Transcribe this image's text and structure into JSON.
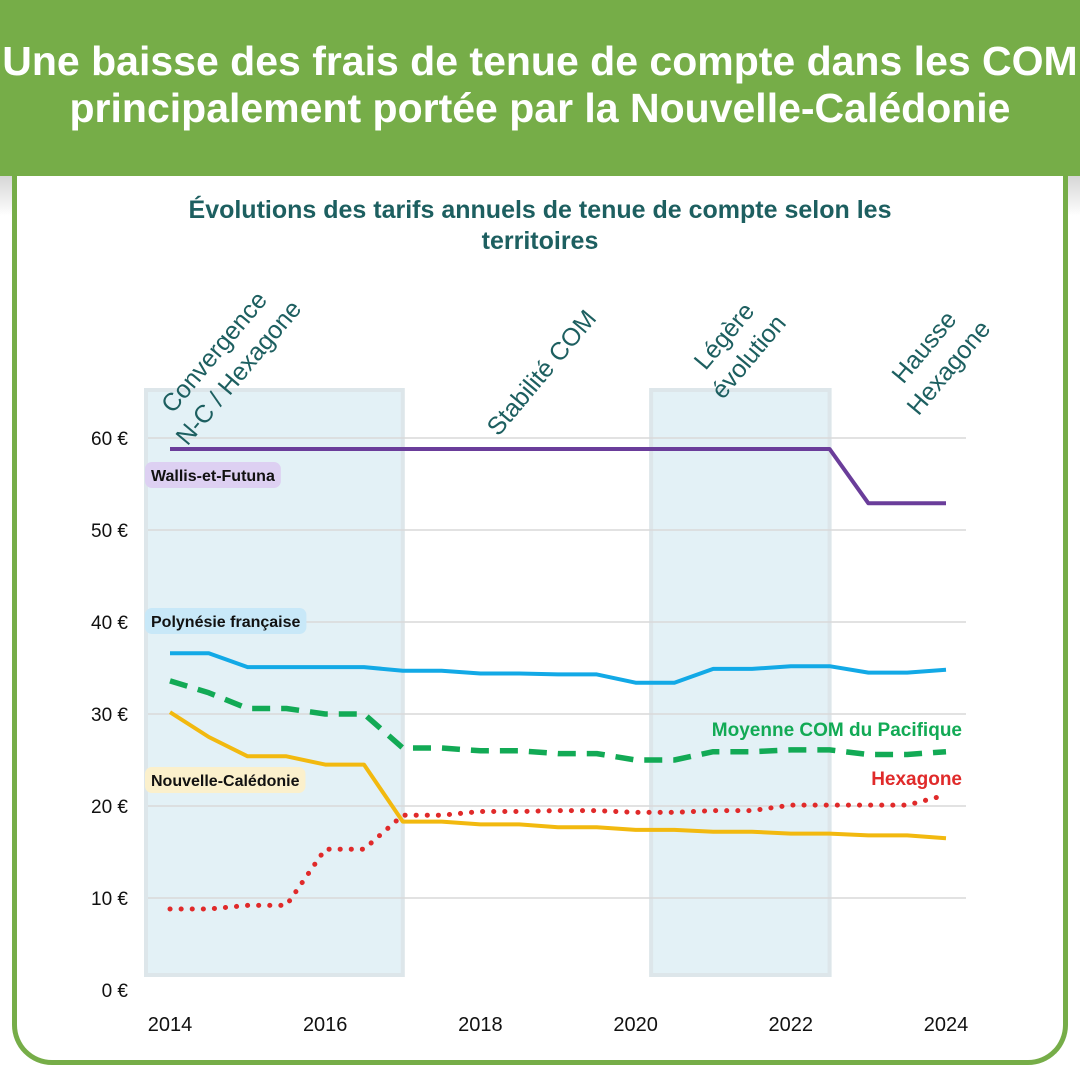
{
  "banner": {
    "title": "Une baisse des frais de tenue de compte dans les COM principalement portée par la Nouvelle-Calédonie"
  },
  "colors": {
    "banner": "#76ad48",
    "title_text": "#1d5f60",
    "period_band": "#e3f1f6"
  },
  "chart_data": {
    "type": "line",
    "title": "Évolutions des tarifs annuels de tenue de compte selon les territoires",
    "xlabel": "",
    "ylabel": "",
    "xlim": [
      2014,
      2024
    ],
    "ylim": [
      0,
      65
    ],
    "grid": true,
    "x_ticks": [
      2014,
      2016,
      2018,
      2020,
      2022,
      2024
    ],
    "y_ticks": [
      0,
      10,
      20,
      30,
      40,
      50,
      60
    ],
    "y_tick_labels": [
      "0 €",
      "10 €",
      "20 €",
      "30 €",
      "40 €",
      "50 €",
      "60 €"
    ],
    "periods": [
      {
        "label_lines": [
          "Convergence",
          "N-C / Hexagone"
        ],
        "start": 2014,
        "end": 2017,
        "shaded": true
      },
      {
        "label_lines": [
          "Stabilité COM"
        ],
        "start": 2017,
        "end": 2020.2,
        "shaded": false
      },
      {
        "label_lines": [
          "Légère",
          "évolution"
        ],
        "start": 2020.2,
        "end": 2022.5,
        "shaded": true
      },
      {
        "label_lines": [
          "Hausse",
          "Hexagone"
        ],
        "start": 2022.5,
        "end": 2024,
        "shaded": false
      }
    ],
    "series": [
      {
        "name": "Wallis-et-Futuna",
        "color": "#6a3d9a",
        "style": "solid",
        "label_bg": "#ddd0f2",
        "label_pos": "left",
        "x": [
          2014,
          2022.5,
          2023,
          2024
        ],
        "y": [
          58.8,
          58.8,
          52.9,
          52.9
        ]
      },
      {
        "name": "Polynésie française",
        "color": "#12a9e6",
        "style": "solid",
        "label_bg": "#c8e8f8",
        "label_pos": "left",
        "x": [
          2014,
          2014.5,
          2015,
          2015.5,
          2016,
          2016.5,
          2017,
          2017.5,
          2018,
          2018.5,
          2019,
          2019.5,
          2020,
          2020.5,
          2021,
          2021.5,
          2022,
          2022.5,
          2023,
          2023.5,
          2024
        ],
        "y": [
          36.6,
          36.6,
          35.1,
          35.1,
          35.1,
          35.1,
          34.7,
          34.7,
          34.4,
          34.4,
          34.3,
          34.3,
          33.4,
          33.4,
          34.9,
          34.9,
          35.2,
          35.2,
          34.5,
          34.5,
          34.8
        ]
      },
      {
        "name": "Moyenne COM du Pacifique",
        "color": "#12aa55",
        "style": "dashed",
        "label_bg": "",
        "label_pos": "right",
        "x": [
          2014,
          2014.5,
          2015,
          2015.5,
          2016,
          2016.5,
          2017,
          2017.5,
          2018,
          2018.5,
          2019,
          2019.5,
          2020,
          2020.5,
          2021,
          2021.5,
          2022,
          2022.5,
          2023,
          2023.5,
          2024
        ],
        "y": [
          33.6,
          32.3,
          30.6,
          30.6,
          30.0,
          30.0,
          26.3,
          26.3,
          26.0,
          26.0,
          25.7,
          25.7,
          25.0,
          25.0,
          25.9,
          25.9,
          26.1,
          26.1,
          25.6,
          25.6,
          25.9
        ]
      },
      {
        "name": "Hexagone",
        "color": "#e02a2a",
        "style": "dotted",
        "label_bg": "",
        "label_pos": "right",
        "x": [
          2014,
          2014.5,
          2015,
          2015.5,
          2016,
          2016.5,
          2017,
          2017.5,
          2018,
          2018.5,
          2019,
          2019.5,
          2020,
          2020.5,
          2021,
          2021.5,
          2022,
          2022.5,
          2023,
          2023.5,
          2024
        ],
        "y": [
          8.8,
          8.8,
          9.2,
          9.2,
          15.3,
          15.3,
          19.0,
          19.0,
          19.4,
          19.4,
          19.5,
          19.5,
          19.3,
          19.3,
          19.5,
          19.5,
          20.1,
          20.1,
          20.1,
          20.1,
          21.2
        ]
      },
      {
        "name": "Nouvelle-Calédonie",
        "color": "#f2b90f",
        "style": "solid",
        "label_bg": "#fbf0cc",
        "label_pos": "left",
        "x": [
          2014,
          2014.5,
          2015,
          2015.5,
          2016,
          2016.5,
          2017,
          2017.5,
          2018,
          2018.5,
          2019,
          2019.5,
          2020,
          2020.5,
          2021,
          2021.5,
          2022,
          2022.5,
          2023,
          2023.5,
          2024
        ],
        "y": [
          30.2,
          27.5,
          25.4,
          25.4,
          24.5,
          24.5,
          18.3,
          18.3,
          18.0,
          18.0,
          17.7,
          17.7,
          17.4,
          17.4,
          17.2,
          17.2,
          17.0,
          17.0,
          16.8,
          16.8,
          16.5
        ]
      }
    ]
  }
}
